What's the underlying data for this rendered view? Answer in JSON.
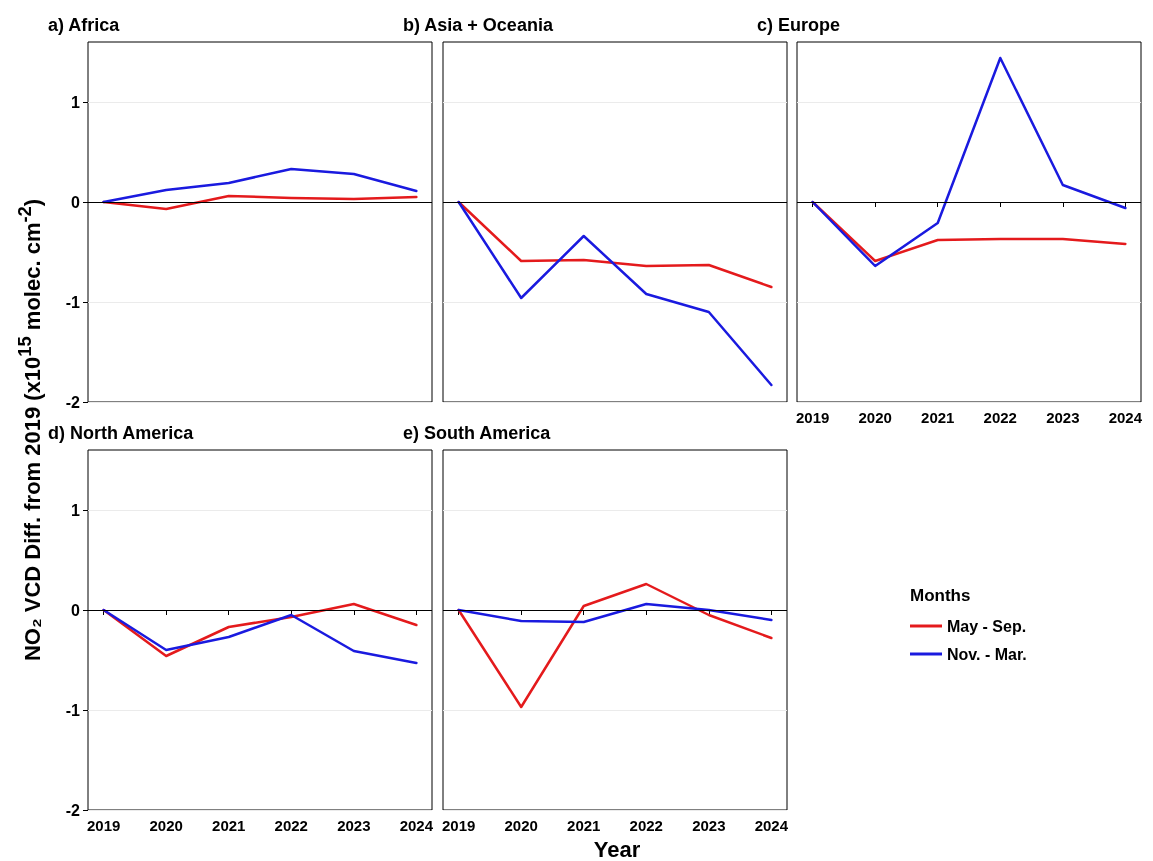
{
  "chart_data": [
    {
      "type": "line",
      "title": "a) Africa",
      "ylabel": "NO₂ VCD Diff. from 2019 (x10$^{15}$ molec. cm$^{-2}$)",
      "x": [
        2019,
        2020,
        2021,
        2022,
        2023,
        2024
      ],
      "xlim": [
        2018.75,
        2024.25
      ],
      "xticks": [
        2019,
        2020,
        2021,
        2022,
        2023,
        2024
      ],
      "ylim": [
        -2,
        1.6
      ],
      "yticks": [
        -2,
        -1,
        0,
        1
      ],
      "grid": "y",
      "marker": "none",
      "tick_labels": "y",
      "ref_lines": [
        {
          "axis": "y",
          "value": 0,
          "color": "#000000"
        }
      ],
      "series": [
        {
          "color": "#e41a1c",
          "values": [
            0,
            -0.07,
            0.06,
            0.04,
            0.03,
            0.05
          ]
        },
        {
          "color": "#1a1adf",
          "values": [
            0,
            0.12,
            0.19,
            0.33,
            0.28,
            0.11
          ]
        }
      ]
    },
    {
      "type": "line",
      "title": "b) Asia + Oceania",
      "x": [
        2019,
        2020,
        2021,
        2022,
        2023,
        2024
      ],
      "xlim": [
        2018.75,
        2024.25
      ],
      "xticks": [
        2019,
        2020,
        2021,
        2022,
        2023,
        2024
      ],
      "ylim": [
        -2,
        1.6
      ],
      "yticks": [
        -2,
        -1,
        0,
        1
      ],
      "grid": "y",
      "marker": "none",
      "tick_labels": false,
      "ref_lines": [
        {
          "axis": "y",
          "value": 0,
          "color": "#000000"
        }
      ],
      "series": [
        {
          "color": "#e41a1c",
          "values": [
            0,
            -0.59,
            -0.58,
            -0.64,
            -0.63,
            -0.85
          ]
        },
        {
          "color": "#1a1adf",
          "values": [
            0,
            -0.96,
            -0.34,
            -0.92,
            -1.1,
            -1.83
          ]
        }
      ]
    },
    {
      "type": "line",
      "title": "c) Europe",
      "x": [
        2019,
        2020,
        2021,
        2022,
        2023,
        2024
      ],
      "xlim": [
        2018.75,
        2024.25
      ],
      "xticks": [
        2019,
        2020,
        2021,
        2022,
        2023,
        2024
      ],
      "ylim": [
        -2,
        1.6
      ],
      "yticks": [
        -2,
        -1,
        0,
        1
      ],
      "grid": "y",
      "marker": "none",
      "tick_labels": "x",
      "ref_lines": [
        {
          "axis": "y",
          "value": 0,
          "color": "#000000"
        }
      ],
      "series": [
        {
          "color": "#e41a1c",
          "values": [
            0,
            -0.59,
            -0.38,
            -0.37,
            -0.37,
            -0.42
          ]
        },
        {
          "color": "#1a1adf",
          "values": [
            0,
            -0.64,
            -0.21,
            1.44,
            0.17,
            -0.06
          ]
        }
      ]
    },
    {
      "type": "line",
      "title": "d) North America",
      "x": [
        2019,
        2020,
        2021,
        2022,
        2023,
        2024
      ],
      "xlim": [
        2018.75,
        2024.25
      ],
      "xticks": [
        2019,
        2020,
        2021,
        2022,
        2023,
        2024
      ],
      "ylim": [
        -2,
        1.6
      ],
      "yticks": [
        -2,
        -1,
        0,
        1
      ],
      "grid": "y",
      "marker": "none",
      "ref_lines": [
        {
          "axis": "y",
          "value": 0,
          "color": "#000000"
        }
      ],
      "series": [
        {
          "color": "#e41a1c",
          "values": [
            0,
            -0.46,
            -0.17,
            -0.07,
            0.06,
            -0.15
          ]
        },
        {
          "color": "#1a1adf",
          "values": [
            0,
            -0.4,
            -0.27,
            -0.05,
            -0.41,
            -0.53
          ]
        }
      ]
    },
    {
      "type": "line",
      "title": "e) South America",
      "xlabel": "Year",
      "legend": "right",
      "legend_title": "Months",
      "x": [
        2019,
        2020,
        2021,
        2022,
        2023,
        2024
      ],
      "xlim": [
        2018.75,
        2024.25
      ],
      "xticks": [
        2019,
        2020,
        2021,
        2022,
        2023,
        2024
      ],
      "ylim": [
        -2,
        1.6
      ],
      "yticks": [
        -2,
        -1,
        0,
        1
      ],
      "grid": "y",
      "marker": "none",
      "tick_labels": "x",
      "ref_lines": [
        {
          "axis": "y",
          "value": 0,
          "color": "#000000"
        }
      ],
      "series": [
        {
          "name": "May - Sep.",
          "color": "#e41a1c",
          "values": [
            0,
            -0.97,
            0.04,
            0.26,
            -0.05,
            -0.28
          ]
        },
        {
          "name": "Nov. - Mar.",
          "color": "#1a1adf",
          "values": [
            0,
            -0.11,
            -0.12,
            0.06,
            0,
            -0.1
          ]
        }
      ]
    }
  ]
}
